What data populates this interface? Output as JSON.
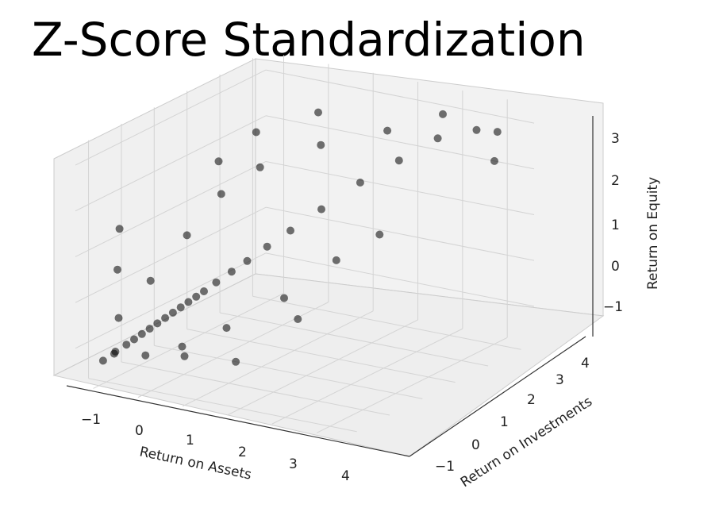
{
  "chart_data": {
    "type": "scatter3d",
    "title": "Z-Score Standardization",
    "xlabel": "Return on Assets",
    "ylabel": "Return on Investments",
    "zlabel": "Return on Equity",
    "x_ticks": [
      "−1",
      "0",
      "1",
      "2",
      "3",
      "4"
    ],
    "y_ticks": [
      "−1",
      "0",
      "1",
      "2",
      "3",
      "4"
    ],
    "z_ticks": [
      "−1",
      "0",
      "1",
      "2",
      "3"
    ],
    "xlim": [
      -1.4,
      4.6
    ],
    "ylim": [
      -1.4,
      4.4
    ],
    "zlim": [
      -1.8,
      3.4
    ],
    "marker_color": "#000000",
    "marker_alpha": 0.55,
    "grid": true,
    "legend": "none",
    "points": [
      [
        -1.0,
        -1.1,
        -1.3
      ],
      [
        -0.9,
        -0.9,
        -1.2
      ],
      [
        -0.8,
        -1.0,
        -1.1
      ],
      [
        -0.7,
        -0.8,
        -1.0
      ],
      [
        -0.6,
        -0.7,
        -0.9
      ],
      [
        -0.5,
        -0.6,
        -0.8
      ],
      [
        -0.4,
        -0.5,
        -0.7
      ],
      [
        -0.3,
        -0.4,
        -0.6
      ],
      [
        -0.2,
        -0.3,
        -0.5
      ],
      [
        -0.1,
        -0.2,
        -0.4
      ],
      [
        0.0,
        -0.1,
        -0.3
      ],
      [
        0.1,
        0.0,
        -0.2
      ],
      [
        0.2,
        0.1,
        -0.1
      ],
      [
        0.3,
        0.2,
        0.0
      ],
      [
        0.5,
        0.3,
        0.2
      ],
      [
        0.7,
        0.5,
        0.4
      ],
      [
        0.9,
        0.7,
        0.6
      ],
      [
        1.2,
        0.9,
        0.9
      ],
      [
        1.5,
        1.2,
        1.2
      ],
      [
        1.9,
        1.6,
        1.6
      ],
      [
        2.4,
        2.1,
        2.1
      ],
      [
        2.9,
        2.6,
        2.5
      ],
      [
        3.4,
        3.1,
        2.9
      ],
      [
        3.9,
        3.6,
        3.0
      ],
      [
        -1.0,
        -0.6,
        1.4
      ],
      [
        -0.9,
        -0.8,
        0.6
      ],
      [
        -0.8,
        -0.9,
        -0.4
      ],
      [
        -0.6,
        -0.2,
        0.2
      ],
      [
        -0.3,
        0.5,
        1.0
      ],
      [
        0.1,
        1.0,
        1.8
      ],
      [
        0.6,
        1.5,
        2.3
      ],
      [
        1.3,
        2.4,
        2.6
      ],
      [
        2.2,
        3.2,
        2.8
      ],
      [
        3.0,
        3.8,
        3.1
      ],
      [
        4.0,
        4.1,
        2.8
      ],
      [
        4.3,
        3.6,
        2.4
      ],
      [
        1.8,
        0.6,
        0.0
      ],
      [
        2.6,
        1.1,
        0.8
      ],
      [
        3.2,
        1.6,
        1.3
      ],
      [
        1.1,
        -0.2,
        -0.5
      ],
      [
        0.4,
        -0.6,
        -0.9
      ],
      [
        -0.4,
        1.6,
        2.2
      ],
      [
        0.0,
        2.2,
        2.7
      ],
      [
        0.8,
        3.0,
        3.0
      ],
      [
        1.6,
        -0.6,
        -1.0
      ],
      [
        2.4,
        0.2,
        -0.2
      ],
      [
        -0.2,
        -0.9,
        -1.1
      ],
      [
        0.6,
        -0.8,
        -1.0
      ]
    ]
  }
}
